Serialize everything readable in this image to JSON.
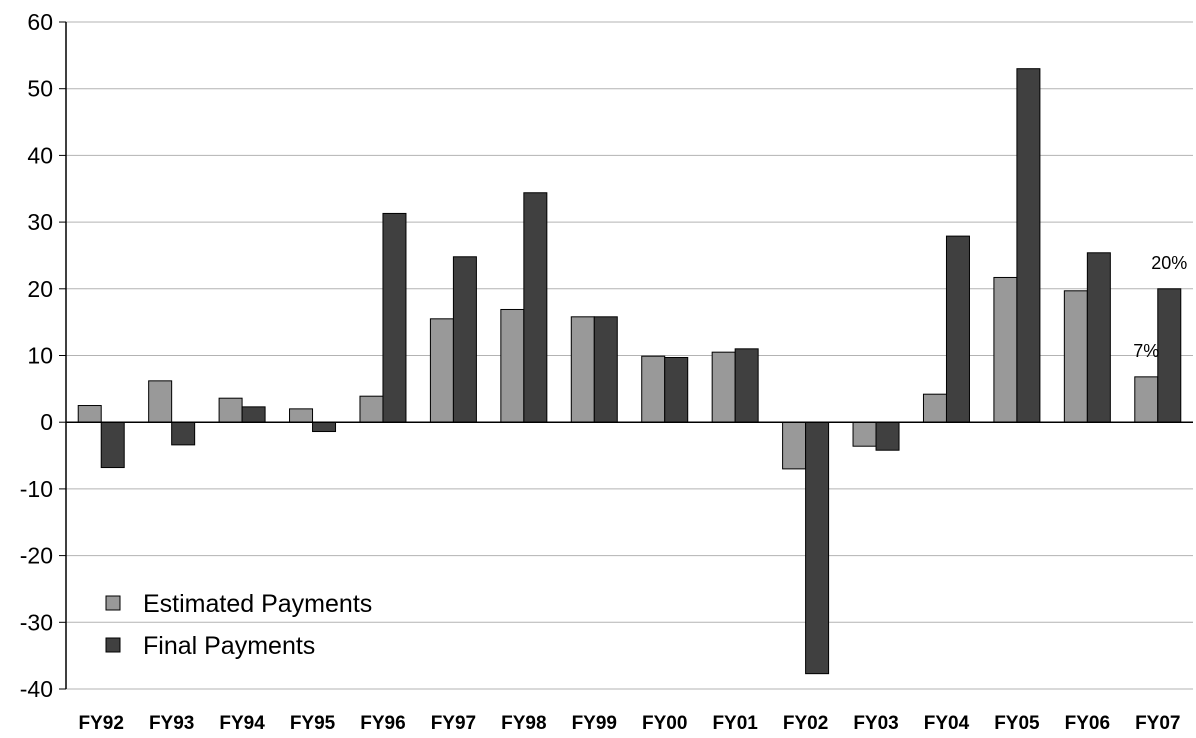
{
  "chart_data": {
    "type": "bar",
    "categories": [
      "FY92",
      "FY93",
      "FY94",
      "FY95",
      "FY96",
      "FY97",
      "FY98",
      "FY99",
      "FY00",
      "FY01",
      "FY02",
      "FY03",
      "FY04",
      "FY05",
      "FY06",
      "FY07"
    ],
    "series": [
      {
        "name": "Estimated Payments",
        "color": "#999999",
        "values": [
          2.5,
          6.2,
          3.6,
          2.0,
          3.9,
          15.5,
          16.9,
          15.8,
          9.9,
          10.5,
          -7.0,
          -3.6,
          4.2,
          21.7,
          19.7,
          6.8
        ]
      },
      {
        "name": "Final Payments",
        "color": "#404040",
        "values": [
          -6.8,
          -3.4,
          2.3,
          -1.4,
          31.3,
          24.8,
          34.4,
          15.8,
          9.7,
          11.0,
          -37.7,
          -4.2,
          27.9,
          53.0,
          25.4,
          20.0
        ]
      }
    ],
    "yticks": [
      "60",
      "50",
      "40",
      "30",
      "20",
      "10",
      "0",
      "-10",
      "-20",
      "-30",
      "-40"
    ],
    "ylim": [
      -40,
      60
    ],
    "grid": true,
    "legend_position": "bottom-left",
    "annotations": [
      {
        "text": "7%",
        "category": "FY07",
        "series": 0
      },
      {
        "text": "20%",
        "category": "FY07",
        "series": 1
      }
    ]
  }
}
